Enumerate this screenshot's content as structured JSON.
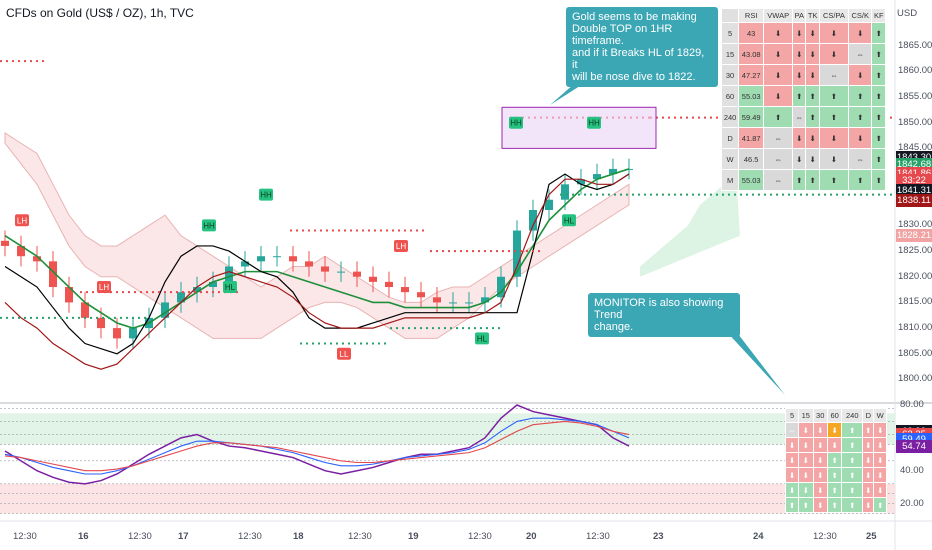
{
  "header": {
    "title": "CFDs on Gold (US$ / OZ), 1h, TVC"
  },
  "price_axis": {
    "currency": "USD",
    "ticks": [
      "1865.00",
      "1860.00",
      "1855.00",
      "1850.00",
      "1845.00",
      "1840.00",
      "1835.00",
      "1830.00",
      "1825.00",
      "1820.00",
      "1815.00",
      "1810.00",
      "1805.00",
      "1800.00"
    ],
    "tags": [
      {
        "label": "1843.30",
        "color": "#131722",
        "y": 1843.3
      },
      {
        "label": "1842.68",
        "color": "#26a269",
        "y": 1842.0
      },
      {
        "label": "1841.86",
        "color": "#e5484d",
        "y": 1840.3
      },
      {
        "label": "33:22",
        "color": "#e5484d",
        "y": 1838.9
      },
      {
        "label": "1841.31",
        "color": "#131722",
        "y": 1836.8
      },
      {
        "label": "1838.11",
        "color": "#a11717",
        "y": 1835.0
      },
      {
        "label": "1828.21",
        "color": "#f1a3a3",
        "y": 1828.2
      }
    ]
  },
  "rsi_axis": {
    "ticks": [
      "80.00",
      "40.00",
      "20.00"
    ],
    "tags": [
      {
        "label": "63.93",
        "color": "#131722",
        "y": 63.93
      },
      {
        "label": "62.35",
        "color": "#e5484d",
        "y": 62.35
      },
      {
        "label": "59.49",
        "color": "#2962ff",
        "y": 59.49
      },
      {
        "label": "54.74",
        "color": "#7b1fa2",
        "y": 54.74
      }
    ]
  },
  "time_axis": {
    "ticks": [
      "12:30",
      "16",
      "12:30",
      "17",
      "12:30",
      "18",
      "12:30",
      "19",
      "12:30",
      "20",
      "12:30",
      "23",
      "24",
      "12:30",
      "25"
    ]
  },
  "callouts": [
    {
      "text": "Gold seems to be making\nDouble TOP on 1HR timeframe.\nand if it Breaks HL of 1829, it\nwill be nose dive to 1822."
    },
    {
      "text": "MONITOR is also showing Trend\nchange."
    }
  ],
  "labels": [
    {
      "text": "HH",
      "kind": "high"
    },
    {
      "text": "HH",
      "kind": "high"
    },
    {
      "text": "HH",
      "kind": "high"
    },
    {
      "text": "HH",
      "kind": "high"
    },
    {
      "text": "HL",
      "kind": "high"
    },
    {
      "text": "HL",
      "kind": "high"
    },
    {
      "text": "HL",
      "kind": "high"
    },
    {
      "text": "LH",
      "kind": "low"
    },
    {
      "text": "LH",
      "kind": "low"
    },
    {
      "text": "LH",
      "kind": "low"
    },
    {
      "text": "LL",
      "kind": "low"
    }
  ],
  "monitor_top": {
    "headers": [
      "RSI",
      "VWAP",
      "PA",
      "TK",
      "CS/PA",
      "CS/K",
      "KF"
    ],
    "rows": [
      {
        "tf": "5",
        "rsi": "43",
        "cells": [
          "⬇",
          "⬇",
          "⬇",
          "⬇",
          "⬇",
          "⬆"
        ],
        "colors": [
          "r",
          "r",
          "r",
          "r",
          "r",
          "r",
          "g"
        ]
      },
      {
        "tf": "15",
        "rsi": "43.08",
        "cells": [
          "⬇",
          "⬇",
          "⬇",
          "⬇",
          "⇔",
          "⬆"
        ],
        "colors": [
          "r",
          "r",
          "r",
          "r",
          "r",
          "gy",
          "g"
        ]
      },
      {
        "tf": "30",
        "rsi": "47.27",
        "cells": [
          "⬇",
          "⬇",
          "⬇",
          "⇔",
          "⬇",
          "⬆"
        ],
        "colors": [
          "r",
          "r",
          "r",
          "r",
          "gy",
          "r",
          "g"
        ]
      },
      {
        "tf": "60",
        "rsi": "55.03",
        "cells": [
          "⬇",
          "⬆",
          "⬆",
          "⬆",
          "⬆",
          "⬆"
        ],
        "colors": [
          "g",
          "r",
          "g",
          "g",
          "g",
          "g",
          "g"
        ]
      },
      {
        "tf": "240",
        "rsi": "59.49",
        "cells": [
          "⬆",
          "⇔",
          "⬆",
          "⬆",
          "⬆",
          "⬆"
        ],
        "colors": [
          "g",
          "g",
          "gy",
          "g",
          "g",
          "g",
          "g"
        ]
      },
      {
        "tf": "D",
        "rsi": "41.87",
        "cells": [
          "⇔",
          "⬇",
          "⬇",
          "⬇",
          "⬇",
          "⬆"
        ],
        "colors": [
          "r",
          "gy",
          "r",
          "r",
          "r",
          "r",
          "g"
        ]
      },
      {
        "tf": "W",
        "rsi": "46.5",
        "cells": [
          "⇔",
          "⬇",
          "⬇",
          "⬇",
          "⇔",
          "⬆"
        ],
        "colors": [
          "gy",
          "gy",
          "gy",
          "gy",
          "gy",
          "gy",
          "g"
        ]
      },
      {
        "tf": "M",
        "rsi": "55.03",
        "cells": [
          "⇔",
          "⬆",
          "⬆",
          "⬆",
          "⬆",
          "⬆"
        ],
        "colors": [
          "g",
          "gy",
          "g",
          "g",
          "g",
          "g",
          "g"
        ]
      }
    ]
  },
  "monitor_bottom": {
    "headers": [
      "5",
      "15",
      "30",
      "60",
      "240",
      "D",
      "W"
    ],
    "rows": [
      {
        "cells": [
          "⇔",
          "⬇",
          "⬇",
          "⬇",
          "⬆",
          "⬆",
          "⬇"
        ],
        "colors": [
          "gy",
          "r",
          "r",
          "o",
          "g",
          "r",
          "r"
        ]
      },
      {
        "cells": [
          "⬇",
          "⬇",
          "⬇",
          "⬇",
          "⬆",
          "⬇",
          "⬇"
        ],
        "colors": [
          "r",
          "r",
          "r",
          "r",
          "g",
          "r",
          "r"
        ]
      },
      {
        "cells": [
          "⬇",
          "⬇",
          "⬇",
          "⬆",
          "⬆",
          "⬇",
          "⬇"
        ],
        "colors": [
          "r",
          "r",
          "r",
          "g",
          "g",
          "r",
          "r"
        ]
      },
      {
        "cells": [
          "⬇",
          "⬇",
          "⬇",
          "⬆",
          "⬆",
          "⬇",
          "⬇"
        ],
        "colors": [
          "r",
          "r",
          "r",
          "g",
          "g",
          "r",
          "r"
        ]
      },
      {
        "cells": [
          "⬇",
          "⬇",
          "⬇",
          "⬆",
          "⬆",
          "⬇",
          "⬇"
        ],
        "colors": [
          "g",
          "g",
          "r",
          "g",
          "g",
          "r",
          "r"
        ]
      },
      {
        "cells": [
          "⬆",
          "⬆",
          "⬇",
          "⬆",
          "⬆",
          "⬇",
          "⬆"
        ],
        "colors": [
          "g",
          "g",
          "r",
          "g",
          "g",
          "r",
          "g"
        ]
      }
    ]
  },
  "chart_data": {
    "type": "line",
    "ylim": [
      1796,
      1870
    ],
    "series": [
      {
        "values": [
          1826,
          1824,
          1823,
          1818,
          1815,
          1812,
          1810,
          1808,
          1810,
          1812,
          1815,
          1817,
          1818,
          1819,
          1822,
          1823,
          1824,
          1824,
          1823,
          1822,
          1821,
          1821,
          1820,
          1819,
          1818,
          1817,
          1816,
          1815,
          1815,
          1815,
          1816,
          1820,
          1829,
          1833,
          1835,
          1838,
          1839,
          1840,
          1841,
          1841
        ]
      },
      {
        "values": [
          1828,
          1826,
          1824,
          1821,
          1818,
          1815,
          1813,
          1811,
          1810,
          1811,
          1813,
          1815,
          1817,
          1819,
          1820,
          1821,
          1821,
          1821,
          1820,
          1819,
          1818,
          1817,
          1816,
          1815,
          1815,
          1814,
          1814,
          1814,
          1814,
          1814,
          1815,
          1817,
          1821,
          1826,
          1831,
          1834,
          1837,
          1839,
          1840,
          1841
        ]
      },
      {
        "values": [
          1822,
          1820,
          1818,
          1814,
          1810,
          1807,
          1806,
          1805,
          1807,
          1812,
          1819,
          1824,
          1826,
          1826,
          1825,
          1823,
          1821,
          1820,
          1817,
          1812,
          1810,
          1810,
          1810,
          1811,
          1812,
          1813,
          1813,
          1813,
          1813,
          1813,
          1813,
          1813,
          1813,
          1825,
          1838,
          1840,
          1838,
          1837,
          1838,
          1840
        ]
      },
      {
        "values": [
          1815,
          1812,
          1810,
          1807,
          1805,
          1803,
          1802,
          1803,
          1806,
          1809,
          1812,
          1815,
          1818,
          1820,
          1821,
          1820,
          1819,
          1818,
          1816,
          1813,
          1811,
          1810,
          1810,
          1810,
          1811,
          1812,
          1812,
          1812,
          1812,
          1812,
          1813,
          1815,
          1822,
          1830,
          1836,
          1839,
          1839,
          1838,
          1838,
          1840
        ]
      },
      {
        "values": [
          52,
          46,
          40,
          36,
          33,
          32,
          34,
          38,
          44,
          50,
          55,
          60,
          62,
          58,
          55,
          54,
          52,
          50,
          48,
          44,
          40,
          38,
          40,
          42,
          45,
          48,
          50,
          50,
          52,
          54,
          60,
          72,
          80,
          76,
          74,
          72,
          70,
          68,
          60,
          55
        ]
      },
      {
        "values": [
          50,
          48,
          45,
          42,
          40,
          38,
          38,
          40,
          43,
          47,
          51,
          55,
          58,
          58,
          57,
          56,
          55,
          53,
          51,
          48,
          45,
          43,
          43,
          44,
          46,
          48,
          49,
          50,
          51,
          53,
          57,
          64,
          70,
          72,
          72,
          71,
          70,
          68,
          64,
          60
        ]
      },
      {
        "values": [
          49,
          48,
          46,
          44,
          42,
          40,
          40,
          41,
          43,
          46,
          49,
          52,
          55,
          57,
          57,
          56,
          55,
          54,
          52,
          50,
          48,
          46,
          45,
          45,
          46,
          47,
          48,
          49,
          50,
          51,
          54,
          59,
          64,
          68,
          69,
          70,
          69,
          67,
          64,
          62
        ]
      }
    ]
  }
}
